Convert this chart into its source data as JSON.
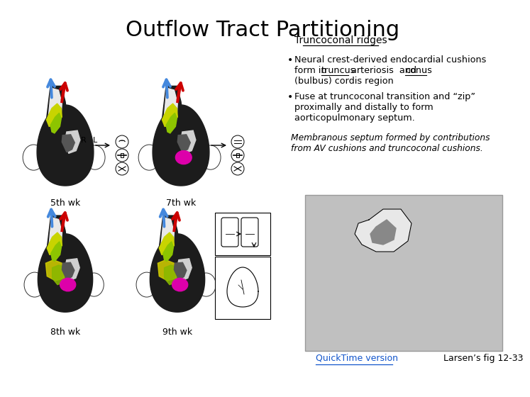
{
  "title": "Outflow Tract Partitioning",
  "title_fontsize": 22,
  "bg_color": "#ffffff",
  "text_color": "#000000",
  "section_header": "Truncoconal ridges",
  "bullet1_line1": "Neural crest-derived endocardial cushions",
  "bullet1_line2a": "form in ",
  "bullet1_truncus": "truncus",
  "bullet1_line2b": " arteriosis  and ",
  "bullet1_conus": "conus",
  "bullet1_line3": "(bulbus) cordis region",
  "bullet2_text": "Fuse at truncoconal transition and “zip”\nproximally and distally to form\naorticopulmonary septum.",
  "italic_text": "Membranous septum formed by contributions\nfrom AV cushions and truncoconal cushions.",
  "label_5wk": "5th wk",
  "label_7wk": "7th wk",
  "label_8wk": "8th wk",
  "label_9wk": "9th wk",
  "quicktime_label": "QuickTime version",
  "quicktime_color": "#1155cc",
  "larsen_label": "Larsen’s fig 12-33",
  "gray_box_color": "#c0c0c0"
}
